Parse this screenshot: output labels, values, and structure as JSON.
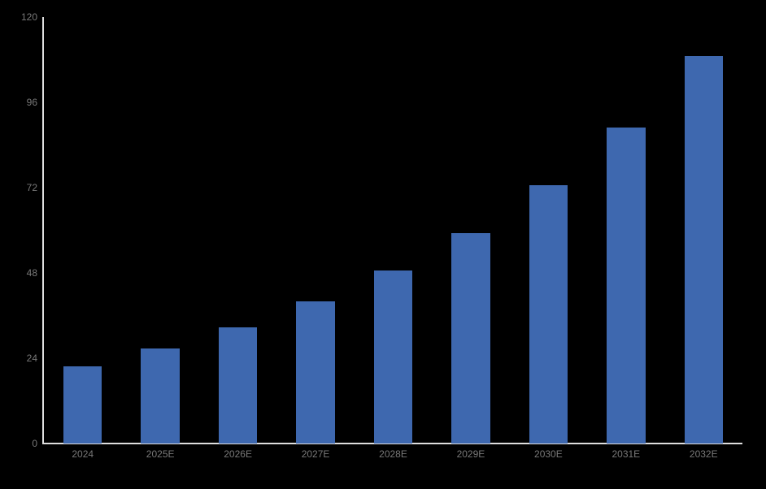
{
  "page": {
    "background": "#000000"
  },
  "chart_data": {
    "type": "bar",
    "title": "",
    "xlabel": "",
    "ylabel": "",
    "categories": [
      "2024",
      "2025E",
      "2026E",
      "2027E",
      "2028E",
      "2029E",
      "2030E",
      "2031E",
      "2032E"
    ],
    "values": [
      21.8,
      26.7,
      32.6,
      39.9,
      48.8,
      59.3,
      72.8,
      89.0,
      109.1
    ],
    "ylim": [
      0,
      120
    ],
    "yticks": [
      0,
      24,
      48,
      72,
      96,
      120
    ],
    "grid": false,
    "legend": "none",
    "bar_color": "#3E68AF",
    "axis_line_color": "#DEDEDE",
    "tick_label_color": "#787878"
  }
}
